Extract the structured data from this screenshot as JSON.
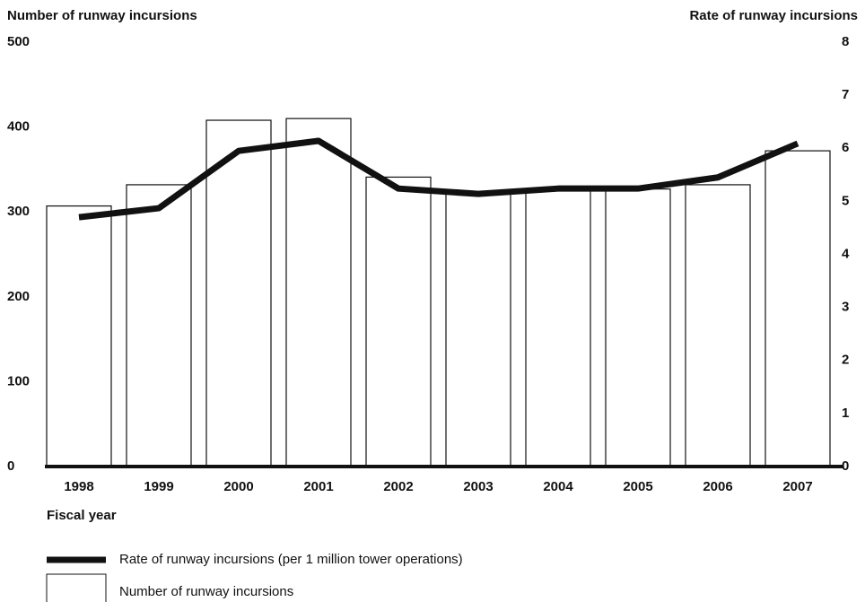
{
  "chart_data": {
    "type": "bar-line",
    "y_label": "Number of runway incursions",
    "y2_label": "Rate of runway incursions",
    "x_label": "Fiscal year",
    "categories": [
      "1998",
      "1999",
      "2000",
      "2001",
      "2002",
      "2003",
      "2004",
      "2005",
      "2006",
      "2007"
    ],
    "series": [
      {
        "name": "Rate of runway incursions (per 1 million tower operations)",
        "type": "line",
        "axis": "y2",
        "color": "#111111",
        "values": [
          4.7,
          4.87,
          5.95,
          6.14,
          5.24,
          5.14,
          5.24,
          5.24,
          5.45,
          6.09
        ]
      },
      {
        "name": "Number of runway incursions",
        "type": "bar",
        "color": "#ffffff",
        "values": [
          307,
          332,
          408,
          410,
          341,
          323,
          327,
          327,
          332,
          372
        ]
      }
    ],
    "ylim": [
      0,
      500
    ],
    "yticks": [
      0,
      100,
      200,
      300,
      400,
      500
    ],
    "y2lim": [
      0,
      8
    ],
    "y2ticks": [
      0,
      1,
      2,
      3,
      4,
      5,
      6,
      7,
      8
    ]
  }
}
